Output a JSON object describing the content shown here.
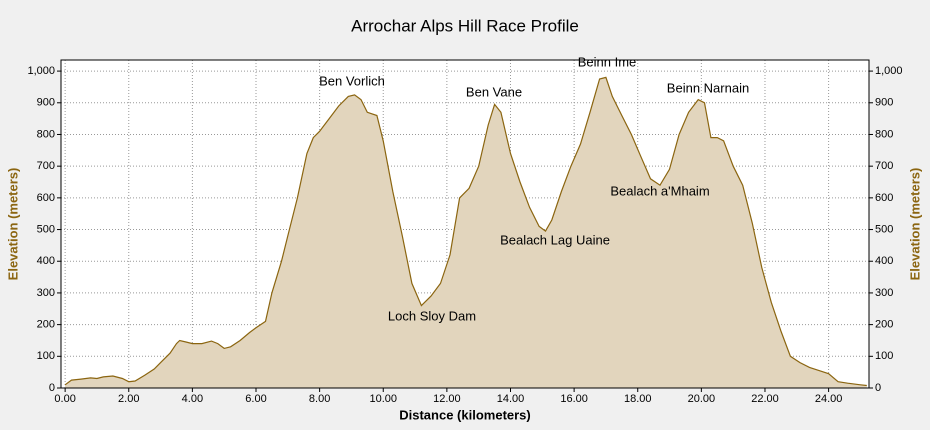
{
  "chart_data": {
    "type": "area",
    "title": "Arrochar Alps Hill Race Profile",
    "x_label": "Distance (kilometers)",
    "y_label": "Elevation (meters)",
    "y2_label": "Elevation (meters)",
    "annotations": [
      "Ben Vorlich",
      "Ben Vane",
      "Beinn Ime",
      "Beinn Narnain",
      "Loch Sloy Dam",
      "Bealach Lag Uaine",
      "Bealach a'Mhaim"
    ],
    "fill_color": "#e2d5bd",
    "line_color": "#8b6510",
    "axis_label_color": "#8b6510",
    "grid": true,
    "x": [
      0.0,
      0.2,
      0.5,
      0.8,
      1.0,
      1.2,
      1.5,
      1.8,
      2.0,
      2.2,
      2.5,
      2.8,
      3.0,
      3.3,
      3.5,
      3.6,
      3.8,
      4.0,
      4.3,
      4.6,
      4.8,
      5.0,
      5.2,
      5.5,
      5.8,
      6.0,
      6.3,
      6.5,
      6.8,
      7.0,
      7.3,
      7.6,
      7.8,
      8.0,
      8.3,
      8.6,
      8.9,
      9.1,
      9.3,
      9.5,
      9.8,
      10.0,
      10.3,
      10.6,
      10.9,
      11.2,
      11.5,
      11.8,
      12.1,
      12.4,
      12.7,
      13.0,
      13.3,
      13.5,
      13.7,
      14.0,
      14.3,
      14.6,
      14.9,
      15.1,
      15.3,
      15.6,
      15.9,
      16.2,
      16.5,
      16.8,
      17.0,
      17.2,
      17.5,
      17.8,
      18.1,
      18.4,
      18.7,
      19.0,
      19.3,
      19.6,
      19.9,
      20.1,
      20.3,
      20.5,
      20.7,
      21.0,
      21.3,
      21.6,
      21.9,
      22.2,
      22.5,
      22.8,
      23.1,
      23.4,
      23.7,
      24.0,
      24.3,
      24.6,
      25.0,
      25.2
    ],
    "values": [
      10,
      25,
      28,
      32,
      30,
      35,
      38,
      30,
      20,
      22,
      40,
      60,
      80,
      110,
      140,
      150,
      145,
      140,
      140,
      148,
      140,
      125,
      130,
      150,
      175,
      190,
      210,
      300,
      400,
      480,
      600,
      740,
      790,
      810,
      850,
      890,
      920,
      925,
      910,
      870,
      860,
      780,
      620,
      480,
      330,
      260,
      290,
      330,
      420,
      600,
      630,
      700,
      830,
      895,
      870,
      740,
      650,
      570,
      510,
      495,
      530,
      620,
      700,
      770,
      870,
      975,
      980,
      920,
      860,
      800,
      730,
      660,
      640,
      690,
      800,
      870,
      910,
      900,
      790,
      790,
      780,
      700,
      640,
      520,
      380,
      270,
      180,
      100,
      80,
      65,
      55,
      45,
      20,
      15,
      10,
      8
    ],
    "xlim": [
      -0.13,
      25.27
    ],
    "xticks": [
      {
        "value": 0,
        "label": "0.00"
      },
      {
        "value": 2,
        "label": "2.00"
      },
      {
        "value": 4,
        "label": "4.00"
      },
      {
        "value": 6,
        "label": "6.00"
      },
      {
        "value": 8,
        "label": "8.00"
      },
      {
        "value": 10,
        "label": "10.00"
      },
      {
        "value": 12,
        "label": "12.00"
      },
      {
        "value": 14,
        "label": "14.00"
      },
      {
        "value": 16,
        "label": "16.00"
      },
      {
        "value": 18,
        "label": "18.00"
      },
      {
        "value": 20,
        "label": "20.00"
      },
      {
        "value": 22,
        "label": "22.00"
      },
      {
        "value": 24,
        "label": "24.00"
      }
    ],
    "ylim": [
      0,
      1035
    ],
    "yticks": [
      0,
      100,
      200,
      300,
      400,
      500,
      600,
      700,
      800,
      900,
      {
        "value": 1000,
        "label": "1,000"
      }
    ],
    "y2lim": [
      0,
      1035
    ],
    "y2ticks": [
      0,
      100,
      200,
      300,
      400,
      500,
      600,
      700,
      800,
      900,
      {
        "value": 1000,
        "label": "1,000"
      }
    ]
  }
}
